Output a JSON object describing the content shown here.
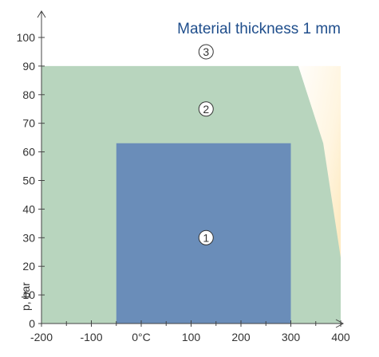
{
  "chart_data": {
    "type": "area",
    "title": "Material thickness 1 mm",
    "xlabel": "",
    "ylabel": "p, bar",
    "x_ticks": [
      -200,
      -100,
      0,
      100,
      200,
      300,
      400
    ],
    "x_tick_labels": [
      "-200",
      "-100",
      "0°C",
      "100",
      "200",
      "300",
      "400"
    ],
    "y_ticks": [
      0,
      10,
      20,
      30,
      40,
      50,
      60,
      70,
      80,
      90,
      100
    ],
    "y_tick_labels": [
      "0",
      "10",
      "20",
      "30",
      "40",
      "50",
      "60",
      "70",
      "80",
      "90",
      "100"
    ],
    "xlim": [
      -200,
      400
    ],
    "ylim": [
      0,
      100
    ],
    "grid": false,
    "legend": "none",
    "regions": [
      {
        "label": "3",
        "color": "#fde9bf",
        "polygon": [
          [
            300,
            0
          ],
          [
            300,
            90
          ],
          [
            400,
            90
          ],
          [
            400,
            0
          ]
        ],
        "label_at": [
          130,
          95
        ]
      },
      {
        "label": "2",
        "color": "#b8d5be",
        "polygon": [
          [
            -200,
            0
          ],
          [
            -200,
            90
          ],
          [
            315,
            90
          ],
          [
            365,
            63
          ],
          [
            400,
            23
          ],
          [
            400,
            0
          ]
        ],
        "label_at": [
          130,
          75
        ]
      },
      {
        "label": "1",
        "color": "#6a8db9",
        "polygon": [
          [
            -50,
            0
          ],
          [
            -50,
            63
          ],
          [
            300,
            63
          ],
          [
            300,
            0
          ]
        ],
        "label_at": [
          130,
          30
        ]
      }
    ]
  }
}
